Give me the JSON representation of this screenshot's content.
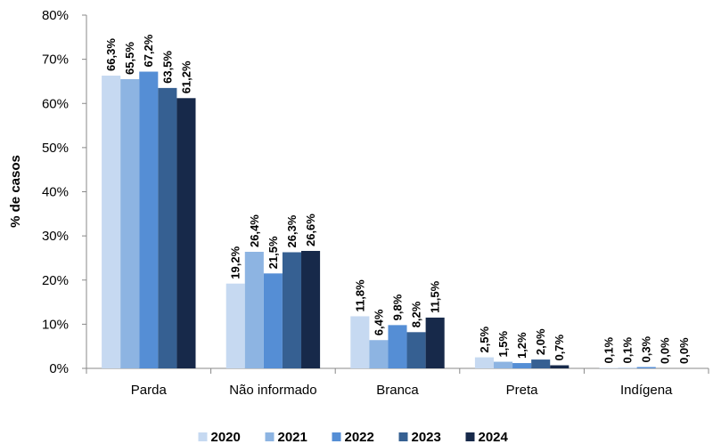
{
  "chart_data": {
    "type": "bar",
    "y_label": "% de casos",
    "categories": [
      "Parda",
      "Não informado",
      "Branca",
      "Preta",
      "Indígena"
    ],
    "series": [
      {
        "name": "2020",
        "color": "#c6d9f1",
        "values": [
          66.3,
          19.2,
          11.8,
          2.5,
          0.1
        ],
        "value_labels": [
          "66,3%",
          "19,2%",
          "11,8%",
          "2,5%",
          "0,1%"
        ]
      },
      {
        "name": "2021",
        "color": "#8db4e2",
        "values": [
          65.5,
          26.4,
          6.4,
          1.5,
          0.1
        ],
        "value_labels": [
          "65,5%",
          "26,4%",
          "6,4%",
          "1,5%",
          "0,1%"
        ]
      },
      {
        "name": "2022",
        "color": "#558ed5",
        "values": [
          67.2,
          21.5,
          9.8,
          1.2,
          0.3
        ],
        "value_labels": [
          "67,2%",
          "21,5%",
          "9,8%",
          "1,2%",
          "0,3%"
        ]
      },
      {
        "name": "2023",
        "color": "#366092",
        "values": [
          63.5,
          26.3,
          8.2,
          2.0,
          0.0
        ],
        "value_labels": [
          "63,5%",
          "26,3%",
          "8,2%",
          "2,0%",
          "0,0%"
        ]
      },
      {
        "name": "2024",
        "color": "#17294a",
        "values": [
          61.2,
          26.6,
          11.5,
          0.7,
          0.0
        ],
        "value_labels": [
          "61,2%",
          "26,6%",
          "11,5%",
          "0,7%",
          "0,0%"
        ]
      }
    ],
    "ylim": [
      0,
      80
    ],
    "yticks": [
      {
        "value": 0,
        "label": "0%"
      },
      {
        "value": 10,
        "label": "10%"
      },
      {
        "value": 20,
        "label": "20%"
      },
      {
        "value": 30,
        "label": "30%"
      },
      {
        "value": 40,
        "label": "40%"
      },
      {
        "value": 50,
        "label": "50%"
      },
      {
        "value": 60,
        "label": "60%"
      },
      {
        "value": 70,
        "label": "70%"
      },
      {
        "value": 80,
        "label": "80%"
      }
    ],
    "grid": false,
    "legend": "bottom"
  }
}
